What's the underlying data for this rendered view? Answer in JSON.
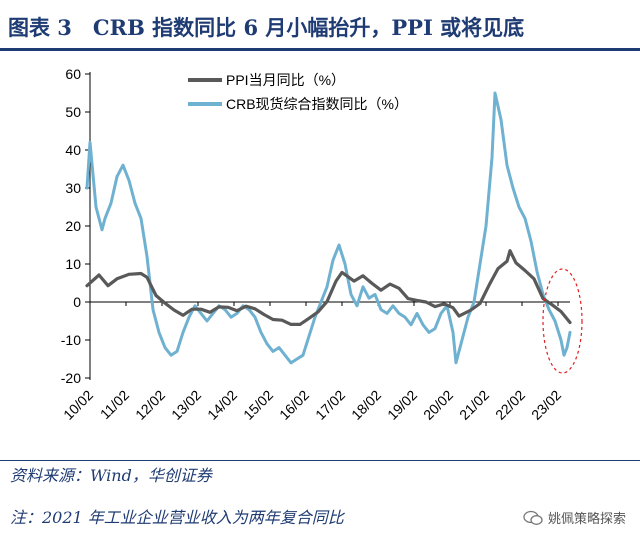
{
  "header": {
    "title": "图表 3　CRB 指数同比 6 月小幅抬升，PPI 或将见底"
  },
  "footer": {
    "source": "资料来源：Wind，华创证券",
    "note": "注：2021 年工业企业营业收入为两年复合同比",
    "watermark": "姚佩策略探索",
    "watermark_icon": "wechat-icon"
  },
  "chart_data": {
    "type": "line",
    "ylim": [
      -20,
      60
    ],
    "yticks": [
      -20,
      -10,
      0,
      10,
      20,
      30,
      40,
      50,
      60
    ],
    "xlim": [
      "2010-02",
      "2023-06"
    ],
    "xticks": [
      "10/02",
      "11/02",
      "12/02",
      "13/02",
      "14/02",
      "15/02",
      "16/02",
      "17/02",
      "18/02",
      "19/02",
      "20/02",
      "21/02",
      "22/02",
      "23/02"
    ],
    "grid": false,
    "legend_position": "top-left",
    "highlight": {
      "shape": "dashed-ellipse",
      "color": "#e02020",
      "x_range": [
        "2023-01",
        "2023-06"
      ]
    },
    "series": [
      {
        "name": "PPI当月同比（%）",
        "color": "#595959",
        "points": [
          [
            "2010-01",
            4.3
          ],
          [
            "2010-05",
            7.1
          ],
          [
            "2010-08",
            4.3
          ],
          [
            "2010-11",
            6.1
          ],
          [
            "2011-03",
            7.3
          ],
          [
            "2011-07",
            7.5
          ],
          [
            "2011-09",
            6.5
          ],
          [
            "2011-12",
            1.7
          ],
          [
            "2012-03",
            -0.3
          ],
          [
            "2012-06",
            -2.1
          ],
          [
            "2012-09",
            -3.5
          ],
          [
            "2012-12",
            -1.9
          ],
          [
            "2013-03",
            -1.9
          ],
          [
            "2013-06",
            -2.7
          ],
          [
            "2013-09",
            -1.3
          ],
          [
            "2013-12",
            -1.4
          ],
          [
            "2014-03",
            -2.3
          ],
          [
            "2014-06",
            -1.1
          ],
          [
            "2014-09",
            -1.8
          ],
          [
            "2014-12",
            -3.3
          ],
          [
            "2015-03",
            -4.6
          ],
          [
            "2015-06",
            -4.8
          ],
          [
            "2015-09",
            -5.9
          ],
          [
            "2015-12",
            -5.9
          ],
          [
            "2016-03",
            -4.3
          ],
          [
            "2016-06",
            -2.6
          ],
          [
            "2016-09",
            0.1
          ],
          [
            "2016-12",
            5.5
          ],
          [
            "2017-02",
            7.8
          ],
          [
            "2017-06",
            5.5
          ],
          [
            "2017-09",
            6.9
          ],
          [
            "2017-12",
            4.9
          ],
          [
            "2018-03",
            3.1
          ],
          [
            "2018-06",
            4.7
          ],
          [
            "2018-09",
            3.6
          ],
          [
            "2018-12",
            0.9
          ],
          [
            "2019-03",
            0.4
          ],
          [
            "2019-06",
            0.0
          ],
          [
            "2019-09",
            -1.2
          ],
          [
            "2019-12",
            -0.5
          ],
          [
            "2020-03",
            -1.5
          ],
          [
            "2020-05",
            -3.7
          ],
          [
            "2020-09",
            -2.1
          ],
          [
            "2020-12",
            -0.4
          ],
          [
            "2021-03",
            4.4
          ],
          [
            "2021-06",
            8.8
          ],
          [
            "2021-09",
            10.7
          ],
          [
            "2021-10",
            13.5
          ],
          [
            "2021-12",
            10.3
          ],
          [
            "2022-03",
            8.3
          ],
          [
            "2022-06",
            6.1
          ],
          [
            "2022-09",
            0.9
          ],
          [
            "2022-12",
            -0.7
          ],
          [
            "2023-03",
            -2.5
          ],
          [
            "2023-06",
            -5.4
          ]
        ]
      },
      {
        "name": "CRB现货综合指数同比（%）",
        "color": "#6fb1d0",
        "points": [
          [
            "2010-01",
            30
          ],
          [
            "2010-02",
            42
          ],
          [
            "2010-04",
            25
          ],
          [
            "2010-06",
            19
          ],
          [
            "2010-07",
            22
          ],
          [
            "2010-09",
            26
          ],
          [
            "2010-11",
            33
          ],
          [
            "2011-01",
            36
          ],
          [
            "2011-03",
            32
          ],
          [
            "2011-05",
            26
          ],
          [
            "2011-07",
            22
          ],
          [
            "2011-09",
            12
          ],
          [
            "2011-11",
            -2
          ],
          [
            "2012-01",
            -8
          ],
          [
            "2012-03",
            -12
          ],
          [
            "2012-05",
            -14
          ],
          [
            "2012-07",
            -13
          ],
          [
            "2012-09",
            -8
          ],
          [
            "2012-11",
            -4
          ],
          [
            "2013-01",
            -1
          ],
          [
            "2013-03",
            -3
          ],
          [
            "2013-05",
            -5
          ],
          [
            "2013-07",
            -3
          ],
          [
            "2013-09",
            -1
          ],
          [
            "2013-11",
            -2
          ],
          [
            "2014-01",
            -4
          ],
          [
            "2014-03",
            -3
          ],
          [
            "2014-05",
            -1
          ],
          [
            "2014-07",
            -2
          ],
          [
            "2014-09",
            -4
          ],
          [
            "2014-11",
            -8
          ],
          [
            "2015-01",
            -11
          ],
          [
            "2015-03",
            -13
          ],
          [
            "2015-05",
            -12
          ],
          [
            "2015-07",
            -14
          ],
          [
            "2015-09",
            -16
          ],
          [
            "2015-11",
            -15
          ],
          [
            "2016-01",
            -14
          ],
          [
            "2016-03",
            -9
          ],
          [
            "2016-05",
            -4
          ],
          [
            "2016-07",
            0
          ],
          [
            "2016-09",
            4
          ],
          [
            "2016-11",
            11
          ],
          [
            "2017-01",
            15
          ],
          [
            "2017-03",
            10
          ],
          [
            "2017-05",
            2
          ],
          [
            "2017-07",
            -1
          ],
          [
            "2017-09",
            4
          ],
          [
            "2017-11",
            1
          ],
          [
            "2018-01",
            2
          ],
          [
            "2018-03",
            -2
          ],
          [
            "2018-05",
            -3
          ],
          [
            "2018-07",
            -1
          ],
          [
            "2018-09",
            -3
          ],
          [
            "2018-11",
            -4
          ],
          [
            "2019-01",
            -6
          ],
          [
            "2019-03",
            -3
          ],
          [
            "2019-05",
            -6
          ],
          [
            "2019-07",
            -8
          ],
          [
            "2019-09",
            -7
          ],
          [
            "2019-11",
            -3
          ],
          [
            "2020-01",
            -1
          ],
          [
            "2020-03",
            -8
          ],
          [
            "2020-04",
            -16
          ],
          [
            "2020-06",
            -10
          ],
          [
            "2020-08",
            -4
          ],
          [
            "2020-10",
            0
          ],
          [
            "2020-12",
            10
          ],
          [
            "2021-02",
            20
          ],
          [
            "2021-04",
            38
          ],
          [
            "2021-05",
            55
          ],
          [
            "2021-07",
            48
          ],
          [
            "2021-09",
            36
          ],
          [
            "2021-11",
            30
          ],
          [
            "2022-01",
            25
          ],
          [
            "2022-03",
            22
          ],
          [
            "2022-05",
            16
          ],
          [
            "2022-07",
            8
          ],
          [
            "2022-09",
            2
          ],
          [
            "2022-11",
            -2
          ],
          [
            "2023-01",
            -5
          ],
          [
            "2023-03",
            -10
          ],
          [
            "2023-04",
            -14
          ],
          [
            "2023-05",
            -12
          ],
          [
            "2023-06",
            -8
          ]
        ]
      }
    ]
  }
}
